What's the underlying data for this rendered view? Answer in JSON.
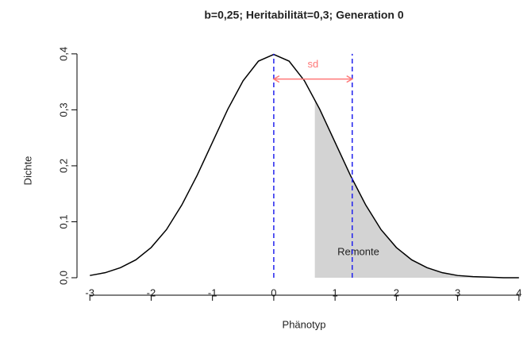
{
  "chart_data": {
    "type": "density",
    "title": "b=0,25; Heritabilität=0,3; Generation 0",
    "x_label": "Phänotyp",
    "y_label": "Dichte",
    "xlim": [
      -3.21,
      4.08
    ],
    "ylim": [
      -0.017,
      0.414
    ],
    "xticks": [
      -3,
      -2,
      -1,
      0,
      1,
      2,
      3,
      4
    ],
    "yticks": [
      {
        "value": 0,
        "label": "0,0"
      },
      {
        "value": 0.1,
        "label": "0,1"
      },
      {
        "value": 0.2,
        "label": "0,2"
      },
      {
        "value": 0.3,
        "label": "0,3"
      },
      {
        "value": 0.4,
        "label": "0,4"
      }
    ],
    "series": [
      {
        "name": "Dichte",
        "color": "#000000",
        "x": [
          -3,
          -2.75,
          -2.5,
          -2.25,
          -2,
          -1.75,
          -1.5,
          -1.25,
          -1,
          -0.75,
          -0.5,
          -0.25,
          0,
          0.25,
          0.5,
          0.75,
          1,
          1.25,
          1.5,
          1.75,
          2,
          2.25,
          2.5,
          2.75,
          3,
          3.25,
          3.5,
          3.75,
          4
        ],
        "values": [
          0.004,
          0.009,
          0.018,
          0.032,
          0.054,
          0.086,
          0.13,
          0.183,
          0.242,
          0.301,
          0.352,
          0.387,
          0.399,
          0.387,
          0.352,
          0.301,
          0.242,
          0.183,
          0.13,
          0.086,
          0.054,
          0.032,
          0.018,
          0.009,
          0.004,
          0.002,
          0.001,
          0.0,
          0.0
        ]
      },
      {
        "name": "Remonte",
        "color": "#d3d3d3",
        "fill": true,
        "x": [
          0.67,
          0.75,
          1,
          1.25,
          1.5,
          1.75,
          2,
          2.25,
          2.5,
          2.75,
          3,
          3.25,
          3.5,
          3.75,
          4
        ],
        "values": [
          0.319,
          0.301,
          0.242,
          0.183,
          0.13,
          0.086,
          0.054,
          0.032,
          0.018,
          0.009,
          0.004,
          0.002,
          0.001,
          0.0,
          0.0
        ],
        "label_x": 1.38,
        "label_y": 0.045
      }
    ],
    "vlines": {
      "color": "#2222ee",
      "x": [
        0,
        1.28
      ]
    },
    "sd_arrow": {
      "label": "sd",
      "color": "#ff7777",
      "from": 0,
      "to": 1.28,
      "y": 0.355
    }
  }
}
